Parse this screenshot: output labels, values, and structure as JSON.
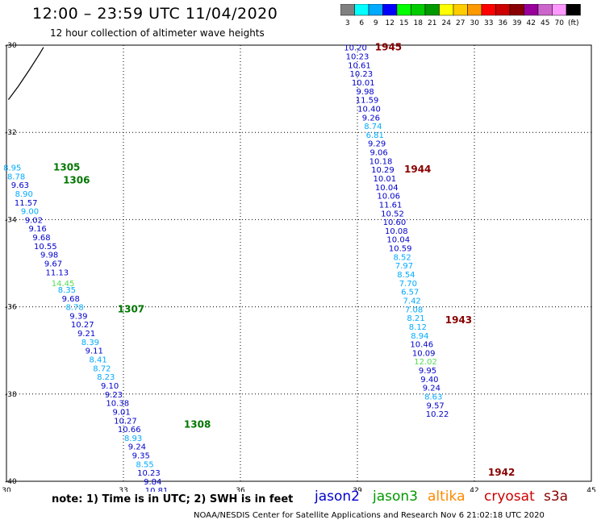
{
  "title": "12:00 – 23:59 UTC 11/04/2020",
  "subtitle": "12 hour collection of altimeter wave heights",
  "note": "note:  1) Time is in UTC;  2) SWH is in feet",
  "credit": "NOAA/NESDIS Center for Satellite Applications and Research    Nov  6 21:02:18 UTC 2020",
  "satellites": [
    {
      "name": "jason2",
      "color": "#0000cc"
    },
    {
      "name": "jason3",
      "color": "#009900"
    },
    {
      "name": "altika",
      "color": "#ff8800"
    },
    {
      "name": "cryosat",
      "color": "#cc0000"
    },
    {
      "name": "s3a",
      "color": "#880000"
    }
  ],
  "legend": {
    "labels": [
      "3",
      "6",
      "9",
      "12",
      "15",
      "18",
      "21",
      "24",
      "27",
      "30",
      "33",
      "36",
      "39",
      "42",
      "45",
      "70",
      "(ft)"
    ],
    "colors": [
      "#808080",
      "#00ffff",
      "#00aaff",
      "#0000ff",
      "#00ff00",
      "#00cc00",
      "#009900",
      "#ffff00",
      "#ffcc00",
      "#ff9900",
      "#ff0000",
      "#cc0000",
      "#880000",
      "#990099",
      "#cc66cc",
      "#ff99ff",
      "#000000"
    ]
  },
  "chart_data": {
    "type": "scatter",
    "xlim": [
      30,
      45
    ],
    "ylim": [
      -40,
      -30
    ],
    "xticks": [
      "30",
      "33",
      "36",
      "39",
      "42",
      "45"
    ],
    "yticks": [
      "-30",
      "-32",
      "-34",
      "-36",
      "-38",
      "-40"
    ],
    "grid": true,
    "coastline": [
      [
        30.05,
        -31.25
      ],
      [
        30.3,
        -30.95
      ],
      [
        30.6,
        -30.55
      ],
      [
        30.85,
        -30.2
      ],
      [
        30.95,
        -30.05
      ]
    ],
    "time_labels": [
      {
        "text": "1305",
        "x": 31.2,
        "y": -32.8,
        "color": "#007700"
      },
      {
        "text": "1306",
        "x": 31.45,
        "y": -33.1,
        "color": "#007700"
      },
      {
        "text": "1307",
        "x": 32.85,
        "y": -36.05,
        "color": "#007700"
      },
      {
        "text": "1308",
        "x": 34.55,
        "y": -38.7,
        "color": "#007700"
      },
      {
        "text": "1945",
        "x": 39.45,
        "y": -30.05,
        "color": "#880000"
      },
      {
        "text": "1944",
        "x": 40.2,
        "y": -32.85,
        "color": "#880000"
      },
      {
        "text": "1943",
        "x": 41.25,
        "y": -36.3,
        "color": "#880000"
      },
      {
        "text": "1942",
        "x": 42.35,
        "y": -39.8,
        "color": "#880000"
      }
    ],
    "series": [
      {
        "name": "jason3",
        "points": [
          {
            "x": 30.15,
            "y": -32.8,
            "v": "8.95",
            "c": "#00aaff"
          },
          {
            "x": 30.25,
            "y": -33.0,
            "v": "8.78",
            "c": "#00aaff"
          },
          {
            "x": 30.35,
            "y": -33.2,
            "v": "9.63",
            "c": "#0000cc"
          },
          {
            "x": 30.45,
            "y": -33.4,
            "v": "8.90",
            "c": "#00aaff"
          },
          {
            "x": 30.5,
            "y": -33.6,
            "v": "11.57",
            "c": "#0000cc"
          },
          {
            "x": 30.6,
            "y": -33.8,
            "v": "9.00",
            "c": "#00aaff"
          },
          {
            "x": 30.7,
            "y": -34.0,
            "v": "9.02",
            "c": "#0000cc"
          },
          {
            "x": 30.8,
            "y": -34.2,
            "v": "9.16",
            "c": "#0000cc"
          },
          {
            "x": 30.9,
            "y": -34.4,
            "v": "9.68",
            "c": "#0000cc"
          },
          {
            "x": 31.0,
            "y": -34.6,
            "v": "10.55",
            "c": "#0000cc"
          },
          {
            "x": 31.1,
            "y": -34.8,
            "v": "9.98",
            "c": "#0000cc"
          },
          {
            "x": 31.2,
            "y": -35.0,
            "v": "9.67",
            "c": "#0000cc"
          },
          {
            "x": 31.3,
            "y": -35.2,
            "v": "11.13",
            "c": "#0000cc"
          },
          {
            "x": 31.45,
            "y": -35.45,
            "v": "14.45",
            "c": "#55dd55"
          },
          {
            "x": 31.55,
            "y": -35.6,
            "v": "8.35",
            "c": "#00aaff"
          },
          {
            "x": 31.65,
            "y": -35.8,
            "v": "9.68",
            "c": "#0000cc"
          },
          {
            "x": 31.75,
            "y": -36.0,
            "v": "8.78",
            "c": "#00aaff"
          },
          {
            "x": 31.85,
            "y": -36.2,
            "v": "9.39",
            "c": "#0000cc"
          },
          {
            "x": 31.95,
            "y": -36.4,
            "v": "10.27",
            "c": "#0000cc"
          },
          {
            "x": 32.05,
            "y": -36.6,
            "v": "9.21",
            "c": "#0000cc"
          },
          {
            "x": 32.15,
            "y": -36.8,
            "v": "8.39",
            "c": "#00aaff"
          },
          {
            "x": 32.25,
            "y": -37.0,
            "v": "9.11",
            "c": "#0000cc"
          },
          {
            "x": 32.35,
            "y": -37.2,
            "v": "8.41",
            "c": "#00aaff"
          },
          {
            "x": 32.45,
            "y": -37.4,
            "v": "8.72",
            "c": "#00aaff"
          },
          {
            "x": 32.55,
            "y": -37.6,
            "v": "8.23",
            "c": "#00aaff"
          },
          {
            "x": 32.65,
            "y": -37.8,
            "v": "9.10",
            "c": "#0000cc"
          },
          {
            "x": 32.75,
            "y": -38.0,
            "v": "9.23",
            "c": "#0000cc"
          },
          {
            "x": 32.85,
            "y": -38.2,
            "v": "10.38",
            "c": "#0000cc"
          },
          {
            "x": 32.95,
            "y": -38.4,
            "v": "9.01",
            "c": "#0000cc"
          },
          {
            "x": 33.05,
            "y": -38.6,
            "v": "10.27",
            "c": "#0000cc"
          },
          {
            "x": 33.15,
            "y": -38.8,
            "v": "10.66",
            "c": "#0000cc"
          },
          {
            "x": 33.25,
            "y": -39.0,
            "v": "8.93",
            "c": "#00aaff"
          },
          {
            "x": 33.35,
            "y": -39.2,
            "v": "9.24",
            "c": "#0000cc"
          },
          {
            "x": 33.45,
            "y": -39.4,
            "v": "9.35",
            "c": "#0000cc"
          },
          {
            "x": 33.55,
            "y": -39.6,
            "v": "8.55",
            "c": "#00aaff"
          },
          {
            "x": 33.65,
            "y": -39.8,
            "v": "10.23",
            "c": "#0000cc"
          },
          {
            "x": 33.75,
            "y": -40.0,
            "v": "9.84",
            "c": "#0000cc"
          },
          {
            "x": 33.85,
            "y": -40.2,
            "v": "10.81",
            "c": "#0000cc"
          }
        ]
      },
      {
        "name": "s3a",
        "points": [
          {
            "x": 38.95,
            "y": -30.05,
            "v": "10.20",
            "c": "#0000cc"
          },
          {
            "x": 39.0,
            "y": -30.25,
            "v": "10.23",
            "c": "#0000cc"
          },
          {
            "x": 39.05,
            "y": -30.45,
            "v": "10.61",
            "c": "#0000cc"
          },
          {
            "x": 39.1,
            "y": -30.65,
            "v": "10.23",
            "c": "#0000cc"
          },
          {
            "x": 39.15,
            "y": -30.85,
            "v": "10.01",
            "c": "#0000cc"
          },
          {
            "x": 39.2,
            "y": -31.05,
            "v": "9.98",
            "c": "#0000cc"
          },
          {
            "x": 39.25,
            "y": -31.25,
            "v": "11.59",
            "c": "#0000cc"
          },
          {
            "x": 39.3,
            "y": -31.45,
            "v": "10.40",
            "c": "#0000cc"
          },
          {
            "x": 39.35,
            "y": -31.65,
            "v": "9.26",
            "c": "#0000cc"
          },
          {
            "x": 39.4,
            "y": -31.85,
            "v": "8.74",
            "c": "#00aaff"
          },
          {
            "x": 39.45,
            "y": -32.05,
            "v": "6.81",
            "c": "#00aaff"
          },
          {
            "x": 39.5,
            "y": -32.25,
            "v": "9.29",
            "c": "#0000cc"
          },
          {
            "x": 39.55,
            "y": -32.45,
            "v": "9.06",
            "c": "#0000cc"
          },
          {
            "x": 39.6,
            "y": -32.65,
            "v": "10.18",
            "c": "#0000cc"
          },
          {
            "x": 39.65,
            "y": -32.85,
            "v": "10.29",
            "c": "#0000cc"
          },
          {
            "x": 39.7,
            "y": -33.05,
            "v": "10.01",
            "c": "#0000cc"
          },
          {
            "x": 39.75,
            "y": -33.25,
            "v": "10.04",
            "c": "#0000cc"
          },
          {
            "x": 39.8,
            "y": -33.45,
            "v": "10.06",
            "c": "#0000cc"
          },
          {
            "x": 39.85,
            "y": -33.65,
            "v": "11.61",
            "c": "#0000cc"
          },
          {
            "x": 39.9,
            "y": -33.85,
            "v": "10.52",
            "c": "#0000cc"
          },
          {
            "x": 39.95,
            "y": -34.05,
            "v": "10.60",
            "c": "#0000cc"
          },
          {
            "x": 40.0,
            "y": -34.25,
            "v": "10.08",
            "c": "#0000cc"
          },
          {
            "x": 40.05,
            "y": -34.45,
            "v": "10.04",
            "c": "#0000cc"
          },
          {
            "x": 40.1,
            "y": -34.65,
            "v": "10.59",
            "c": "#0000cc"
          },
          {
            "x": 40.15,
            "y": -34.85,
            "v": "8.52",
            "c": "#00aaff"
          },
          {
            "x": 40.2,
            "y": -35.05,
            "v": "7.97",
            "c": "#00aaff"
          },
          {
            "x": 40.25,
            "y": -35.25,
            "v": "8.54",
            "c": "#00aaff"
          },
          {
            "x": 40.3,
            "y": -35.45,
            "v": "7.70",
            "c": "#00aaff"
          },
          {
            "x": 40.35,
            "y": -35.65,
            "v": "6.57",
            "c": "#00aaff"
          },
          {
            "x": 40.4,
            "y": -35.85,
            "v": "7.42",
            "c": "#00aaff"
          },
          {
            "x": 40.45,
            "y": -36.05,
            "v": "7.08",
            "c": "#00aaff"
          },
          {
            "x": 40.5,
            "y": -36.25,
            "v": "8.21",
            "c": "#00aaff"
          },
          {
            "x": 40.55,
            "y": -36.45,
            "v": "8.12",
            "c": "#00aaff"
          },
          {
            "x": 40.6,
            "y": -36.65,
            "v": "8.94",
            "c": "#00aaff"
          },
          {
            "x": 40.65,
            "y": -36.85,
            "v": "10.46",
            "c": "#0000cc"
          },
          {
            "x": 40.7,
            "y": -37.05,
            "v": "10.09",
            "c": "#0000cc"
          },
          {
            "x": 40.75,
            "y": -37.25,
            "v": "12.02",
            "c": "#55dd55"
          },
          {
            "x": 40.8,
            "y": -37.45,
            "v": "9.95",
            "c": "#0000cc"
          },
          {
            "x": 40.85,
            "y": -37.65,
            "v": "9.40",
            "c": "#0000cc"
          },
          {
            "x": 40.9,
            "y": -37.85,
            "v": "9.24",
            "c": "#0000cc"
          },
          {
            "x": 40.95,
            "y": -38.05,
            "v": "8.63",
            "c": "#00aaff"
          },
          {
            "x": 41.0,
            "y": -38.25,
            "v": "9.57",
            "c": "#0000cc"
          },
          {
            "x": 41.05,
            "y": -38.45,
            "v": "10.22",
            "c": "#0000cc"
          }
        ]
      }
    ]
  }
}
